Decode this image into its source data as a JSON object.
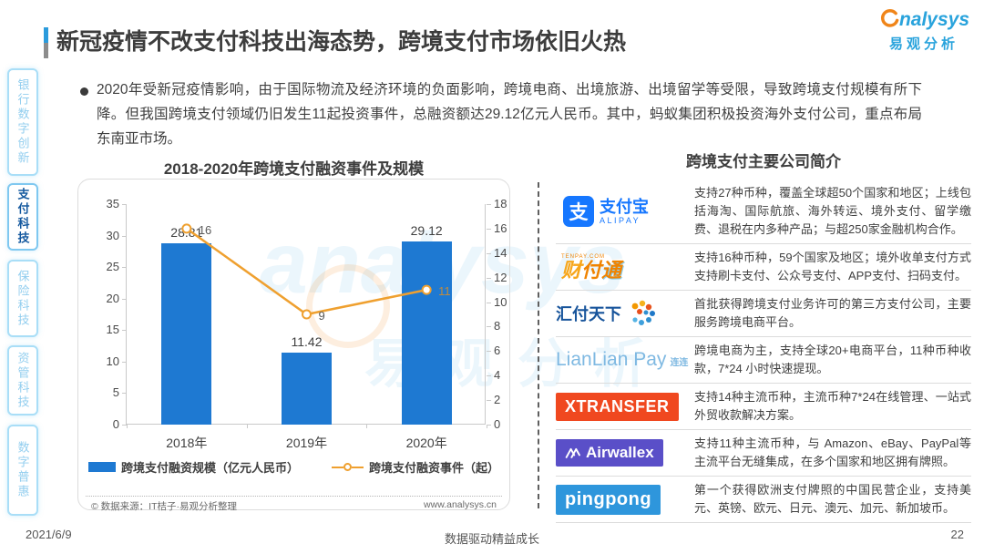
{
  "header": {
    "title": "新冠疫情不改支付科技出海态势，跨境支付市场依旧火热",
    "logo_en": "nalysys",
    "logo_cn": "易观分析"
  },
  "sidebar": {
    "items": [
      {
        "id": "bank-digital-innovation",
        "label": "银行数字创新",
        "active": false
      },
      {
        "id": "payment-tech",
        "label": "支付科技",
        "active": true
      },
      {
        "id": "insurance-tech",
        "label": "保险科技",
        "active": false
      },
      {
        "id": "asset-mgmt-tech",
        "label": "资管科技",
        "active": false
      },
      {
        "id": "digital-inclusion",
        "label": "数字普惠",
        "active": false
      }
    ]
  },
  "intro": {
    "text": "2020年受新冠疫情影响，由于国际物流及经济环境的负面影响，跨境电商、出境旅游、出境留学等受限，导致跨境支付规模有所下降。但我国跨境支付领域仍旧发生11起投资事件，总融资额达29.12亿元人民币。其中，蚂蚁集团积极投资海外支付公司，重点布局东南亚市场。"
  },
  "chart_data": {
    "type": "bar+line",
    "title": "2018-2020年跨境支付融资事件及规模",
    "categories": [
      "2018年",
      "2019年",
      "2020年"
    ],
    "series": [
      {
        "name": "跨境支付融资规模（亿元人民币）",
        "type": "bar",
        "axis": "left",
        "values": [
          28.81,
          11.42,
          29.12
        ],
        "color": "#1E79D2"
      },
      {
        "name": "跨境支付融资事件（起）",
        "type": "line",
        "axis": "right",
        "values": [
          16,
          9,
          11
        ],
        "color": "#EFA02F",
        "label_colors": [
          "#595959",
          "#595959",
          "#BF8B3F"
        ]
      }
    ],
    "left_axis": {
      "min": 0,
      "max": 35,
      "step": 5
    },
    "right_axis": {
      "min": 0,
      "max": 18,
      "step": 2
    },
    "grid": false,
    "legend_position": "bottom"
  },
  "source": {
    "left": "© 数据来源：IT桔子·易观分析整理",
    "right": "www.analysys.cn"
  },
  "companies": {
    "title": "跨境支付主要公司简介",
    "rows": [
      {
        "id": "alipay",
        "logo": "alipay",
        "logo_text": {
          "icon_char": "支",
          "cn": "支付宝",
          "en": "ALIPAY"
        },
        "desc": "支持27种币种，覆盖全球超50个国家和地区；上线包括海淘、国际航旅、海外转运、境外支付、留学缴费、退税在内多种产品；与超250家金融机构合作。"
      },
      {
        "id": "tenpay",
        "logo": "tenpay",
        "logo_text": {
          "top": "TENPAY.COM",
          "chars": [
            "财",
            "付",
            "通"
          ]
        },
        "desc": "支持16种币种，59个国家及地区；境外收单支付方式支持刷卡支付、公众号支付、APP支付、扫码支付。"
      },
      {
        "id": "huifu",
        "logo": "huifu",
        "logo_text": {
          "cn": "汇付天下"
        },
        "desc": "首批获得跨境支付业务许可的第三方支付公司，主要服务跨境电商平台。"
      },
      {
        "id": "lianlian",
        "logo": "lianlian",
        "logo_text": {
          "en": "LianLian Pay",
          "cn": "连连"
        },
        "desc": "跨境电商为主，支持全球20+电商平台，11种币种收款，7*24 小时快速提现。"
      },
      {
        "id": "xtransfer",
        "logo": "xtransfer",
        "logo_text": {
          "en": "XTRANSFER"
        },
        "box_color": "#F0481F",
        "desc": "支持14种主流币种，主流币种7*24在线管理、一站式外贸收款解决方案。"
      },
      {
        "id": "airwallex",
        "logo": "airwallex",
        "logo_text": {
          "en": "Airwallex"
        },
        "box_color": "#5A4FC8",
        "desc": "支持11种主流币种，与 Amazon、eBay、PayPal等主流平台无缝集成，在多个国家和地区拥有牌照。"
      },
      {
        "id": "pingpong",
        "logo": "pingpong",
        "logo_text": {
          "en": "pingpong"
        },
        "box_color": "#2E96DC",
        "desc": "第一个获得欧洲支付牌照的中国民营企业，支持美元、英镑、欧元、日元、澳元、加元、新加坡币。"
      }
    ]
  },
  "watermark": {
    "en": "analysys",
    "cn": "易观分析"
  },
  "footer": {
    "date": "2021/6/9",
    "slogan": "数据驱动精益成长",
    "page": "22"
  },
  "colors": {
    "bar": "#1E79D2",
    "line": "#EFA02F",
    "accent_blue": "#2B9BDC",
    "brand_blue": "#29A3DC",
    "brand_orange": "#F08519",
    "sidebar_active": "#15599F"
  }
}
